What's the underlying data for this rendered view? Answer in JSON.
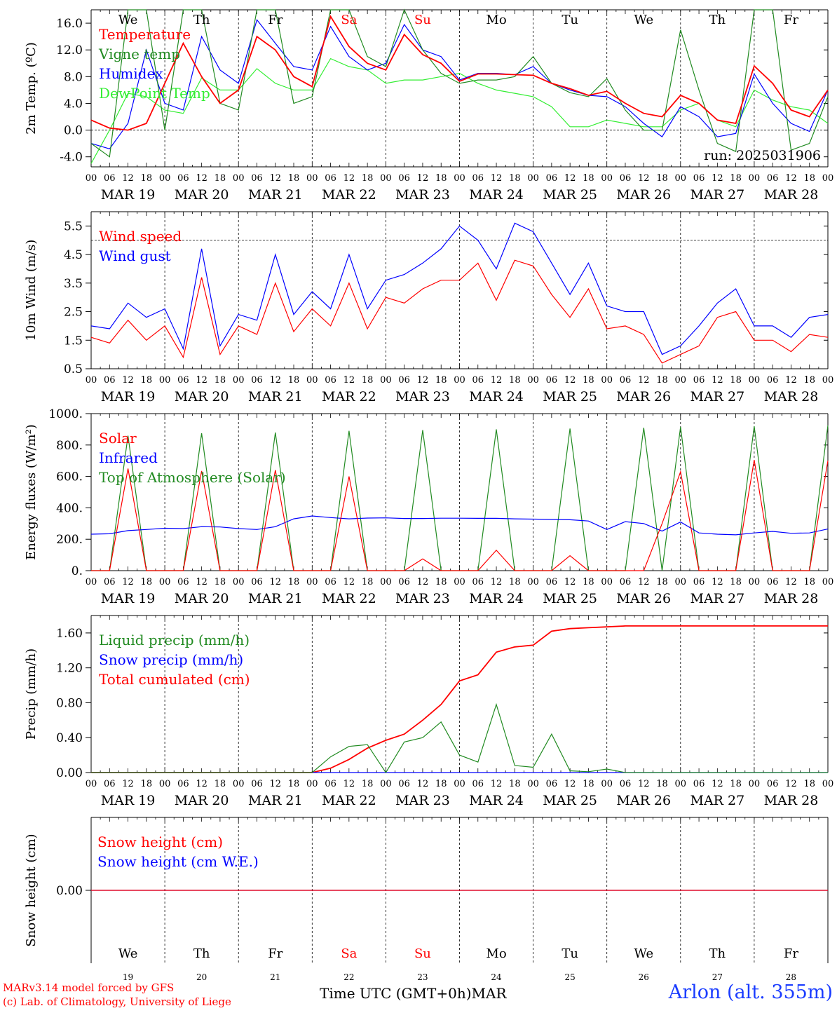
{
  "colors": {
    "red": "#ff0000",
    "green": "#228b22",
    "blue": "#0000ff",
    "light_green": "#33ee33",
    "black": "#000000",
    "weekend": "#ff0000"
  },
  "time_axis": {
    "hour_ticks": [
      "00",
      "06",
      "12",
      "18"
    ],
    "last_tick": "00",
    "dates": [
      "MAR 19",
      "MAR 20",
      "MAR 21",
      "MAR 22",
      "MAR 23",
      "MAR 24",
      "MAR 25",
      "MAR 26",
      "MAR 27",
      "MAR 28"
    ],
    "weekdays": [
      "We",
      "Th",
      "Fr",
      "Sa",
      "Su",
      "Mo",
      "Tu",
      "We",
      "Th",
      "Fr"
    ],
    "weekend_flags": [
      false,
      false,
      false,
      true,
      true,
      false,
      false,
      false,
      false,
      false
    ],
    "day_numbers": [
      "19",
      "20",
      "21",
      "22",
      "23",
      "24",
      "25",
      "26",
      "27",
      "28"
    ]
  },
  "chart_data": [
    {
      "type": "line",
      "ylabel": "2m Temp. (ºC)",
      "yticks": [
        "-4.0",
        "0.0",
        "4.0",
        "8.0",
        "12.0",
        "16.0"
      ],
      "ylim": [
        -5.5,
        18
      ],
      "reference_line": 0,
      "annotation": "run: 2025031906",
      "series": [
        {
          "name": "Temperature",
          "color": "#ff0000",
          "x": [
            0,
            6,
            12,
            18,
            24,
            30,
            36,
            42,
            48,
            54,
            60,
            66,
            72,
            78,
            84,
            90,
            96,
            102,
            108,
            114,
            120,
            126,
            132,
            138,
            144,
            150,
            156,
            162,
            168,
            174,
            180,
            186,
            192,
            198,
            204,
            210,
            216,
            222,
            228,
            234,
            240
          ],
          "values": [
            1.5,
            0.3,
            0,
            1,
            7,
            13,
            8,
            4,
            6,
            14,
            12,
            8,
            6.5,
            17,
            12.5,
            10,
            9,
            14.3,
            11.3,
            10,
            7.3,
            8.4,
            8.4,
            8.3,
            8.2,
            7,
            6.2,
            5.2,
            5.8,
            4,
            2.5,
            2,
            5.2,
            4,
            1.5,
            1,
            9.6,
            7,
            3,
            2,
            6
          ]
        },
        {
          "name": "Vigne temp",
          "color": "#228b22",
          "x": [
            0,
            6,
            12,
            18,
            24,
            30,
            36,
            42,
            48,
            54,
            60,
            66,
            72,
            78,
            84,
            90,
            96,
            102,
            108,
            114,
            120,
            126,
            132,
            138,
            144,
            150,
            156,
            162,
            168,
            174,
            180,
            186,
            192,
            198,
            204,
            210,
            216,
            222,
            228,
            234,
            240
          ],
          "values": [
            -2,
            -4,
            19,
            18,
            0,
            18,
            19,
            4,
            3,
            19,
            19,
            4,
            5,
            19,
            19,
            11,
            9.5,
            18,
            12,
            8.5,
            7,
            7.5,
            7.5,
            8,
            11,
            7,
            5.6,
            5,
            7.7,
            3,
            0,
            0,
            15,
            6,
            -2,
            -3.2,
            19,
            19,
            -3,
            -2,
            5
          ]
        },
        {
          "name": "Humidex",
          "color": "#0000ff",
          "x": [
            0,
            6,
            12,
            18,
            24,
            30,
            36,
            42,
            48,
            54,
            60,
            66,
            72,
            78,
            84,
            90,
            96,
            102,
            108,
            114,
            120,
            126,
            132,
            138,
            144,
            150,
            156,
            162,
            168,
            174,
            180,
            186,
            192,
            198,
            204,
            210,
            216,
            222,
            228,
            234,
            240
          ],
          "values": [
            -2,
            -2.8,
            1,
            12,
            4,
            3,
            14,
            9,
            7,
            16.5,
            13,
            9.5,
            9,
            15.5,
            11,
            9,
            10,
            15.8,
            12,
            11,
            7.5,
            8.5,
            8.5,
            8.3,
            9.5,
            7,
            6,
            5.2,
            5,
            3.5,
            1,
            -1,
            3.5,
            2,
            -1,
            -0.5,
            8.4,
            4,
            1,
            -0.2,
            6
          ]
        },
        {
          "name": "DewPoint Temp",
          "color": "#33ee33",
          "x": [
            0,
            6,
            12,
            18,
            24,
            30,
            36,
            42,
            48,
            54,
            60,
            66,
            72,
            78,
            84,
            90,
            96,
            102,
            108,
            114,
            120,
            126,
            132,
            138,
            144,
            150,
            156,
            162,
            168,
            174,
            180,
            186,
            192,
            198,
            204,
            210,
            216,
            222,
            228,
            234,
            240
          ],
          "values": [
            -5,
            0,
            5.5,
            5,
            3,
            2.5,
            7.8,
            6,
            6,
            9.2,
            7,
            6,
            6,
            10.7,
            9.5,
            9,
            7,
            7.5,
            7.5,
            8,
            8.5,
            7,
            6,
            5.5,
            5,
            3.5,
            0.5,
            0.5,
            1.5,
            1,
            0.5,
            0.5,
            3,
            4,
            1.5,
            0.5,
            6,
            4.5,
            3.5,
            3,
            1
          ]
        }
      ]
    },
    {
      "type": "line",
      "ylabel": "10m Wind (m/s)",
      "yticks": [
        "0.5",
        "1.5",
        "2.5",
        "3.5",
        "4.5",
        "5.5"
      ],
      "ylim": [
        0.5,
        6
      ],
      "reference_line": 5,
      "series": [
        {
          "name": "Wind speed",
          "color": "#ff0000",
          "x": [
            0,
            6,
            12,
            18,
            24,
            30,
            36,
            42,
            48,
            54,
            60,
            66,
            72,
            78,
            84,
            90,
            96,
            102,
            108,
            114,
            120,
            126,
            132,
            138,
            144,
            150,
            156,
            162,
            168,
            174,
            180,
            186,
            192,
            198,
            204,
            210,
            216,
            222,
            228,
            234,
            240
          ],
          "values": [
            1.6,
            1.4,
            2.2,
            1.5,
            2,
            0.9,
            3.7,
            1,
            2,
            1.7,
            3.5,
            1.8,
            2.6,
            2,
            3.5,
            1.9,
            3,
            2.8,
            3.3,
            3.6,
            3.6,
            4.2,
            2.9,
            4.3,
            4.1,
            3.1,
            2.3,
            3.3,
            1.9,
            2,
            1.7,
            0.7,
            1,
            1.3,
            2.3,
            2.5,
            1.5,
            1.5,
            1.1,
            1.7,
            1.6
          ]
        },
        {
          "name": "Wind gust",
          "color": "#0000ff",
          "x": [
            0,
            6,
            12,
            18,
            24,
            30,
            36,
            42,
            48,
            54,
            60,
            66,
            72,
            78,
            84,
            90,
            96,
            102,
            108,
            114,
            120,
            126,
            132,
            138,
            144,
            150,
            156,
            162,
            168,
            174,
            180,
            186,
            192,
            198,
            204,
            210,
            216,
            222,
            228,
            234,
            240
          ],
          "values": [
            2,
            1.9,
            2.8,
            2.3,
            2.6,
            1.2,
            4.7,
            1.3,
            2.4,
            2.2,
            4.5,
            2.4,
            3.2,
            2.6,
            4.5,
            2.6,
            3.6,
            3.8,
            4.2,
            4.7,
            5.5,
            5,
            4,
            5.6,
            5.3,
            4.2,
            3.1,
            4.2,
            2.7,
            2.5,
            2.5,
            1,
            1.3,
            2,
            2.8,
            3.3,
            2,
            2,
            1.6,
            2.3,
            2.4
          ]
        }
      ]
    },
    {
      "type": "line",
      "ylabel": "Energy fluxes (W/m²)",
      "yticks": [
        "0.",
        "200.",
        "400.",
        "600.",
        "800.",
        "1000."
      ],
      "ylim": [
        0,
        1000
      ],
      "series": [
        {
          "name": "Solar",
          "color": "#ff0000",
          "x": [
            0,
            6,
            12,
            18,
            24,
            30,
            36,
            42,
            48,
            54,
            60,
            66,
            72,
            78,
            84,
            90,
            96,
            102,
            108,
            114,
            120,
            126,
            132,
            138,
            144,
            150,
            156,
            162,
            168,
            174,
            180,
            186,
            192,
            198,
            204,
            210,
            216,
            222,
            228,
            234,
            240
          ],
          "values": [
            0,
            0,
            650,
            0,
            0,
            0,
            635,
            0,
            0,
            0,
            640,
            0,
            0,
            0,
            600,
            0,
            0,
            0,
            75,
            0,
            0,
            0,
            130,
            0,
            0,
            0,
            95,
            0,
            0,
            0,
            0,
            300,
            630,
            0,
            0,
            0,
            705,
            0,
            0,
            0,
            700
          ]
        },
        {
          "name": "Infrared",
          "color": "#0000ff",
          "x": [
            0,
            6,
            12,
            18,
            24,
            30,
            36,
            42,
            48,
            54,
            60,
            66,
            72,
            78,
            84,
            90,
            96,
            102,
            108,
            114,
            120,
            126,
            132,
            138,
            144,
            150,
            156,
            162,
            168,
            174,
            180,
            186,
            192,
            198,
            204,
            210,
            216,
            222,
            228,
            234,
            240
          ],
          "values": [
            232,
            235,
            255,
            262,
            270,
            268,
            280,
            278,
            268,
            262,
            280,
            330,
            348,
            338,
            330,
            335,
            336,
            332,
            332,
            334,
            334,
            333,
            333,
            330,
            328,
            326,
            324,
            316,
            262,
            312,
            300,
            252,
            310,
            240,
            232,
            228,
            240,
            250,
            238,
            240,
            265
          ]
        },
        {
          "name": "Top of Atmosphere (Solar)",
          "color": "#228b22",
          "x": [
            0,
            6,
            12,
            18,
            24,
            30,
            36,
            42,
            48,
            54,
            60,
            66,
            72,
            78,
            84,
            90,
            96,
            102,
            108,
            114,
            120,
            126,
            132,
            138,
            144,
            150,
            156,
            162,
            168,
            174,
            180,
            186,
            192,
            198,
            204,
            210,
            216,
            222,
            228,
            234,
            240
          ],
          "values": [
            0,
            0,
            860,
            0,
            0,
            0,
            875,
            0,
            0,
            0,
            880,
            0,
            0,
            0,
            890,
            0,
            0,
            0,
            895,
            0,
            0,
            0,
            900,
            0,
            0,
            0,
            905,
            0,
            0,
            0,
            910,
            0,
            915,
            0,
            0,
            0,
            920,
            0,
            0,
            0,
            925
          ]
        }
      ]
    },
    {
      "type": "line",
      "ylabel": "Precip (mm/h)",
      "yticks": [
        "0.00",
        "0.40",
        "0.80",
        "1.20",
        "1.60"
      ],
      "ylim": [
        0,
        1.8
      ],
      "series": [
        {
          "name": "Liquid precip (mm/h)",
          "color": "#228b22",
          "x": [
            0,
            6,
            12,
            18,
            24,
            30,
            36,
            42,
            48,
            54,
            60,
            66,
            72,
            78,
            84,
            90,
            96,
            102,
            108,
            114,
            120,
            126,
            132,
            138,
            144,
            150,
            156,
            162,
            168,
            174,
            180,
            186,
            192,
            198,
            204,
            210,
            216,
            222,
            228,
            234,
            240
          ],
          "values": [
            0,
            0,
            0,
            0,
            0,
            0,
            0,
            0,
            0,
            0,
            0,
            0,
            0,
            0.18,
            0.3,
            0.32,
            0,
            0.35,
            0.4,
            0.58,
            0.2,
            0.12,
            0.78,
            0.08,
            0.06,
            0.44,
            0.02,
            0.01,
            0.04,
            0,
            0,
            0,
            0,
            0,
            0,
            0,
            0,
            0,
            0,
            0,
            0
          ]
        },
        {
          "name": "Snow precip (mm/h)",
          "color": "#0000ff",
          "x": [
            0,
            24,
            48,
            72,
            96,
            120,
            144,
            168,
            192,
            216,
            240
          ],
          "values": [
            0,
            0,
            0,
            0,
            0,
            0,
            0,
            0,
            0,
            0,
            0
          ]
        },
        {
          "name": "Total cumulated (cm)",
          "color": "#ff0000",
          "x": [
            0,
            6,
            12,
            18,
            24,
            30,
            36,
            42,
            48,
            54,
            60,
            66,
            72,
            78,
            84,
            90,
            96,
            102,
            108,
            114,
            120,
            126,
            132,
            138,
            144,
            150,
            156,
            162,
            168,
            174,
            180,
            186,
            192,
            198,
            204,
            210,
            216,
            222,
            228,
            234,
            240
          ],
          "values": [
            0,
            0,
            0,
            0,
            0,
            0,
            0,
            0,
            0,
            0,
            0,
            0,
            0,
            0.05,
            0.15,
            0.28,
            0.37,
            0.44,
            0.6,
            0.78,
            1.05,
            1.12,
            1.38,
            1.44,
            1.46,
            1.62,
            1.65,
            1.66,
            1.67,
            1.68,
            1.68,
            1.68,
            1.68,
            1.68,
            1.68,
            1.68,
            1.68,
            1.68,
            1.68,
            1.68,
            1.68
          ]
        }
      ]
    },
    {
      "type": "line",
      "ylabel": "Snow height (cm)",
      "yticks": [
        "0.00"
      ],
      "ylim": [
        -1,
        1
      ],
      "series": [
        {
          "name": "Snow height (cm)",
          "color": "#ff0000",
          "x": [
            0,
            240
          ],
          "values": [
            0,
            0
          ]
        },
        {
          "name": "Snow height (cm W.E.)",
          "color": "#0000ff",
          "x": [
            0,
            240
          ],
          "values": [
            0,
            0
          ]
        }
      ]
    }
  ],
  "footer": {
    "credit_line1": "MARv3.14 model forced by GFS",
    "credit_line2": "(c) Lab. of Climatology, University of Liege",
    "time_label": "Time UTC (GMT+0h)",
    "month": "MAR",
    "station": "Arlon (alt. 355m)"
  }
}
